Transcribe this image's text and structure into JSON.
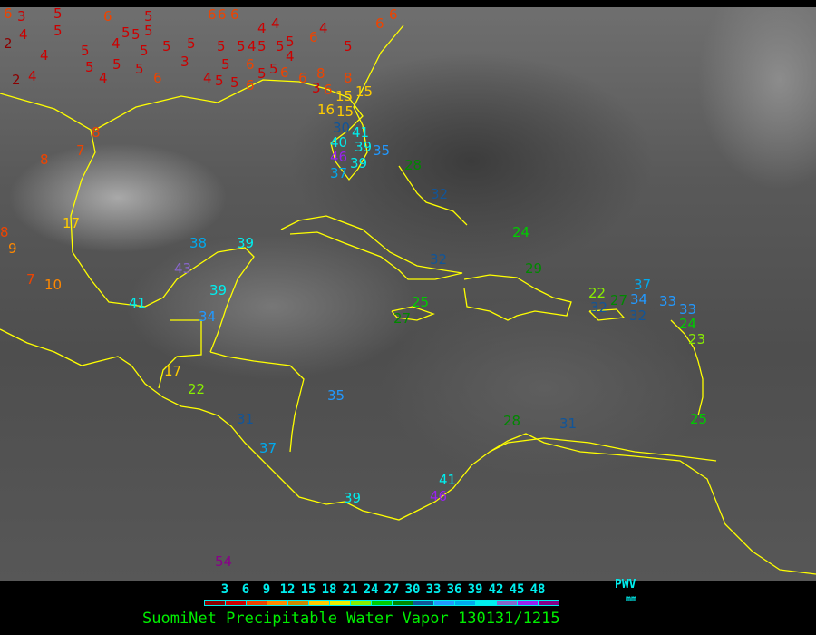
{
  "title": "SuomiNet Precipitable Water Vapor 130131/1215",
  "legend": {
    "unit_label": "PWV",
    "unit": "mm",
    "ticks": [
      "3",
      "6",
      "9",
      "12",
      "15",
      "18",
      "21",
      "24",
      "27",
      "30",
      "33",
      "36",
      "39",
      "42",
      "45",
      "48"
    ],
    "colors": [
      "#8b0000",
      "#cc0000",
      "#ee4400",
      "#ff8800",
      "#cc8800",
      "#ffcc00",
      "#eeee00",
      "#88ee00",
      "#00cc00",
      "#008800",
      "#115599",
      "#2299ff",
      "#00aaee",
      "#00eeee",
      "#8866cc",
      "#9922ee",
      "#880088"
    ]
  },
  "coastline_color": "#ffff00",
  "stations": [
    {
      "value": "6"
    },
    {
      "value": "3"
    },
    {
      "value": "4"
    },
    {
      "value": "2"
    },
    {
      "value": "4"
    },
    {
      "value": "2"
    },
    {
      "value": "4"
    },
    {
      "value": "5"
    },
    {
      "value": "6"
    },
    {
      "value": "5"
    },
    {
      "value": "5"
    },
    {
      "value": "5"
    },
    {
      "value": "5"
    },
    {
      "value": "5"
    },
    {
      "value": "4"
    },
    {
      "value": "5"
    },
    {
      "value": "5"
    },
    {
      "value": "5"
    },
    {
      "value": "4"
    },
    {
      "value": "5"
    },
    {
      "value": "5"
    },
    {
      "value": "6"
    },
    {
      "value": "5"
    },
    {
      "value": "5"
    },
    {
      "value": "6"
    },
    {
      "value": "5"
    },
    {
      "value": "5"
    },
    {
      "value": "5"
    },
    {
      "value": "3"
    },
    {
      "value": "5"
    },
    {
      "value": "5"
    },
    {
      "value": "4"
    },
    {
      "value": "6"
    },
    {
      "value": "6"
    },
    {
      "value": "5"
    },
    {
      "value": "4"
    },
    {
      "value": "5"
    },
    {
      "value": "5"
    },
    {
      "value": "4"
    },
    {
      "value": "4"
    },
    {
      "value": "5"
    },
    {
      "value": "4"
    },
    {
      "value": "5"
    },
    {
      "value": "6"
    },
    {
      "value": "4"
    },
    {
      "value": "6"
    },
    {
      "value": "5"
    },
    {
      "value": "6"
    },
    {
      "value": "6"
    },
    {
      "value": "8"
    },
    {
      "value": "6"
    },
    {
      "value": "3"
    },
    {
      "value": "6"
    },
    {
      "value": "8"
    },
    {
      "value": "6"
    },
    {
      "value": "6"
    },
    {
      "value": "8"
    },
    {
      "value": "8"
    },
    {
      "value": "7"
    },
    {
      "value": "15"
    },
    {
      "value": "15"
    },
    {
      "value": "15"
    },
    {
      "value": "16"
    },
    {
      "value": "30"
    },
    {
      "value": "41"
    },
    {
      "value": "39"
    },
    {
      "value": "40"
    },
    {
      "value": "46"
    },
    {
      "value": "39"
    },
    {
      "value": "35"
    },
    {
      "value": "37"
    },
    {
      "value": "8"
    },
    {
      "value": "9"
    },
    {
      "value": "17"
    },
    {
      "value": "7"
    },
    {
      "value": "10"
    },
    {
      "value": "38"
    },
    {
      "value": "39"
    },
    {
      "value": "43"
    },
    {
      "value": "41"
    },
    {
      "value": "39"
    },
    {
      "value": "34"
    },
    {
      "value": "17"
    },
    {
      "value": "22"
    },
    {
      "value": "31"
    },
    {
      "value": "35"
    },
    {
      "value": "37"
    },
    {
      "value": "39"
    },
    {
      "value": "41"
    },
    {
      "value": "46"
    },
    {
      "value": "54"
    },
    {
      "value": "28"
    },
    {
      "value": "32"
    },
    {
      "value": "24"
    },
    {
      "value": "32"
    },
    {
      "value": "29"
    },
    {
      "value": "25"
    },
    {
      "value": "27"
    },
    {
      "value": "22"
    },
    {
      "value": "32"
    },
    {
      "value": "27"
    },
    {
      "value": "37"
    },
    {
      "value": "34"
    },
    {
      "value": "32"
    },
    {
      "value": "33"
    },
    {
      "value": "33"
    },
    {
      "value": "24"
    },
    {
      "value": "23"
    },
    {
      "value": "25"
    },
    {
      "value": "28"
    },
    {
      "value": "31"
    }
  ]
}
